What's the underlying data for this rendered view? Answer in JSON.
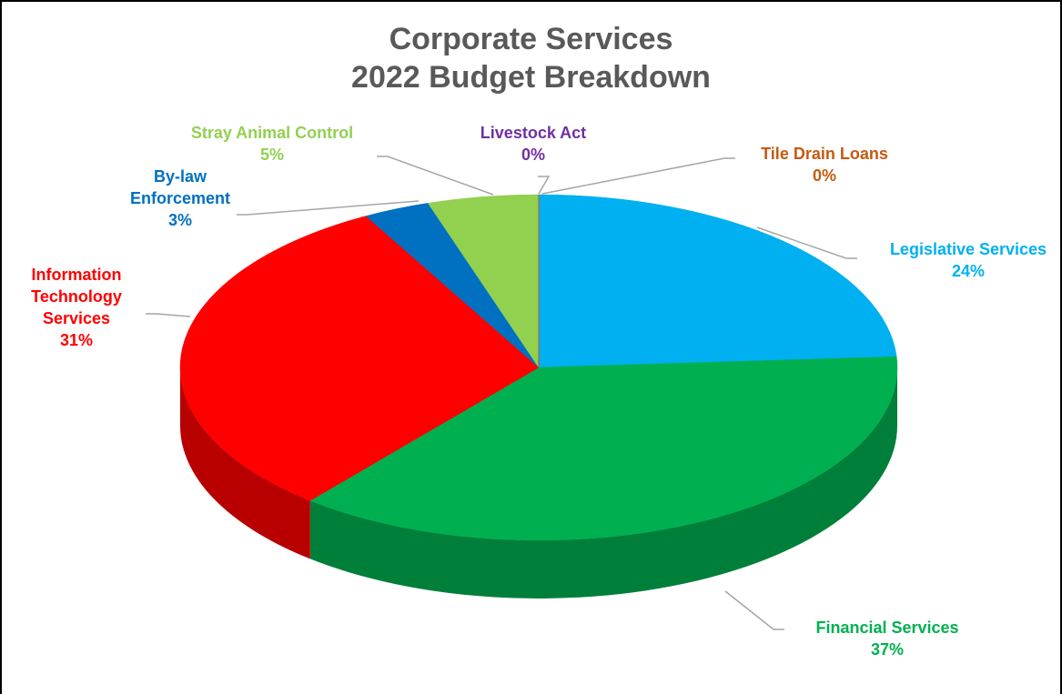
{
  "chart_data": {
    "type": "pie3d",
    "title": "Corporate Services",
    "subtitle": "2022 Budget Breakdown",
    "categories": [
      "Legislative Services",
      "Financial Services",
      "Information Technology Services",
      "By-law Enforcement",
      "Stray Animal Control",
      "Livestock Act",
      "Tile Drain Loans"
    ],
    "values": [
      24,
      37,
      31,
      3,
      5,
      0,
      0
    ],
    "value_labels": [
      "24%",
      "37%",
      "31%",
      "3%",
      "5%",
      "0%",
      "0%"
    ],
    "colors": [
      "#00b0f0",
      "#00b050",
      "#ff0000",
      "#0070c0",
      "#92d050",
      "#7030a0",
      "#c55a11"
    ]
  }
}
